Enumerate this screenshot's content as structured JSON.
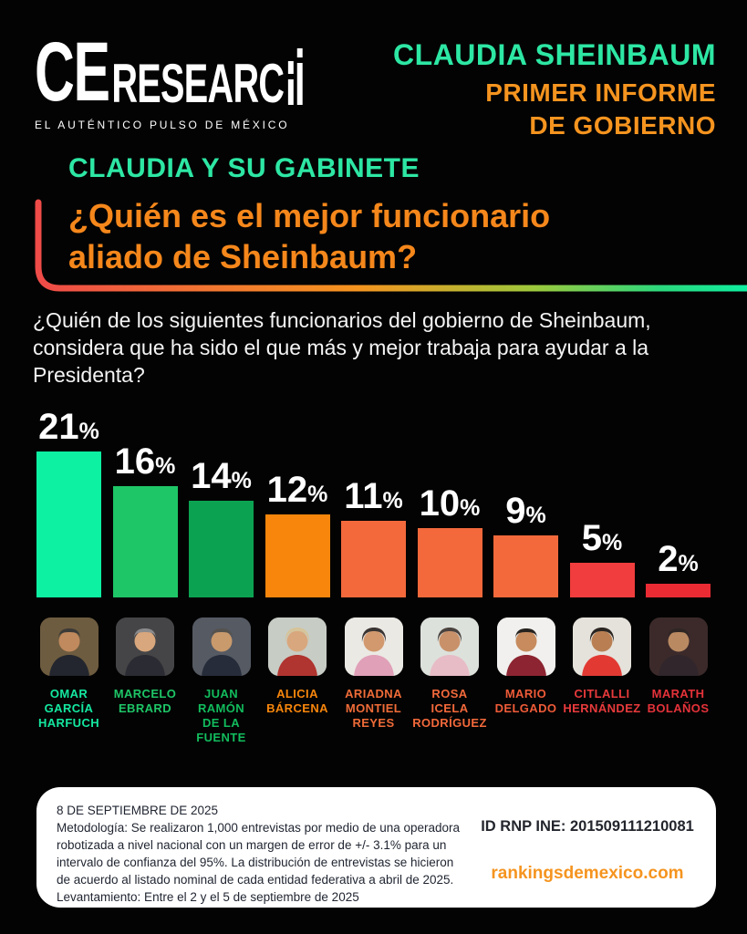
{
  "brand": {
    "logo_primary": "CE",
    "logo_secondary": "RESEARC",
    "tagline": "EL AUTÉNTICO PULSO DE MÉXICO"
  },
  "header": {
    "line1": "CLAUDIA SHEINBAUM",
    "line2": "PRIMER INFORME",
    "line3": "DE GOBIERNO",
    "line1_color": "#2DE7A4",
    "line23_color": "#F5941F"
  },
  "title": {
    "kicker": "CLAUDIA Y SU GABINETE",
    "kicker_color": "#2DE7A4",
    "heading_line1": "¿Quién es el mejor funcionario",
    "heading_line2": "aliado de Sheinbaum?",
    "heading_color": "#F5871B",
    "accent_gradient": [
      "#EF4B48",
      "#F27730",
      "#F5941F",
      "#9DC93C",
      "#2BD97E",
      "#0FEFA0"
    ]
  },
  "question": "¿Quién de los siguientes funcionarios del gobierno de Sheinbaum, considera que ha sido el que más y mejor trabaja para ayudar a la Presidenta?",
  "chart_data": {
    "type": "bar",
    "title": "¿Quién es el mejor funcionario aliado de Sheinbaum?",
    "unit": "%",
    "ylim": [
      0,
      22
    ],
    "grid": false,
    "legend": "none",
    "categories": [
      "Omar García Harfuch",
      "Marcelo Ebrard",
      "Juan Ramón de la Fuente",
      "Alicia Bárcena",
      "Ariadna Montiel Reyes",
      "Rosa Icela Rodríguez",
      "Mario Delgado",
      "Citlalli Hernández",
      "Marath Bolaños"
    ],
    "values": [
      21,
      16,
      14,
      12,
      11,
      10,
      9,
      5,
      2
    ],
    "bar_colors": [
      "#0CF1A2",
      "#1EC667",
      "#0BA351",
      "#F8860C",
      "#F3693B",
      "#F3693B",
      "#F3693B",
      "#F13D3D",
      "#EB2B34"
    ]
  },
  "people": [
    {
      "value": "21",
      "name": "OMAR\nGARCÍA\nHARFUCH",
      "name_color": "#14E8A1",
      "bar_color": "#0CF1A2",
      "photo": {
        "bg": "#6E5C40",
        "skin": "#C08A5E",
        "hair": "#3C3A38",
        "clothes": "#23262E"
      }
    },
    {
      "value": "16",
      "name": "MARCELO\nEBRARD",
      "name_color": "#1EC667",
      "bar_color": "#1EC667",
      "photo": {
        "bg": "#454547",
        "skin": "#D9A77D",
        "hair": "#8A8A8C",
        "clothes": "#2B2B33"
      }
    },
    {
      "value": "14",
      "name": "JUAN\nRAMÓN\nDE LA\nFUENTE",
      "name_color": "#12BC5D",
      "bar_color": "#0BA351",
      "photo": {
        "bg": "#555A63",
        "skin": "#C99A6C",
        "hair": "#55524E",
        "clothes": "#262C3A"
      }
    },
    {
      "value": "12",
      "name": "ALICIA\nBÁRCENA",
      "name_color": "#F8860C",
      "bar_color": "#F8860C",
      "photo": {
        "bg": "#C7CCC5",
        "skin": "#D9A77D",
        "hair": "#D6C49A",
        "clothes": "#B0342F"
      }
    },
    {
      "value": "11",
      "name": "ARIADNA\nMONTIEL\nREYES",
      "name_color": "#F06C38",
      "bar_color": "#F3693B",
      "photo": {
        "bg": "#EBE9E4",
        "skin": "#D2996E",
        "hair": "#3A3432",
        "clothes": "#E0A0B8"
      }
    },
    {
      "value": "10",
      "name": "ROSA\nICELA\nRODRÍGUEZ",
      "name_color": "#F3693B",
      "bar_color": "#F3693B",
      "photo": {
        "bg": "#DDE1DC",
        "skin": "#C9916A",
        "hair": "#4A423E",
        "clothes": "#E7BCC6"
      }
    },
    {
      "value": "9",
      "name": "MARIO\nDELGADO",
      "name_color": "#EF5B38",
      "bar_color": "#F3693B",
      "photo": {
        "bg": "#F1F0EE",
        "skin": "#C78B5E",
        "hair": "#26221F",
        "clothes": "#8D2431"
      }
    },
    {
      "value": "5",
      "name": "CITLALLI\nHERNÁNDEZ",
      "name_color": "#E93A3C",
      "bar_color": "#F13D3D",
      "photo": {
        "bg": "#E5E2DB",
        "skin": "#B97F52",
        "hair": "#2B2522",
        "clothes": "#E23A33"
      }
    },
    {
      "value": "2",
      "name": "MARATH\nBOLAÑOS",
      "name_color": "#E5323A",
      "bar_color": "#EB2B34",
      "photo": {
        "bg": "#3C2A2B",
        "skin": "#B98A62",
        "hair": "#2E2624",
        "clothes": "#30262B"
      }
    }
  ],
  "footer": {
    "date": "8 DE SEPTIEMBRE DE 2025",
    "methodology": "Metodología: Se realizaron 1,000 entrevistas por medio de una operadora robotizada a nivel nacional con un margen de error de +/- 3.1% para un intervalo de confianza del 95%. La distribución de entrevistas se hicieron de acuerdo al listado nominal de cada entidad federativa a abril de 2025.",
    "fieldwork": "Levantamiento: Entre el 2 y el 5 de septiembre de 2025",
    "id_label": "ID RNP INE: 201509111210081",
    "website": "rankingsdemexico.com",
    "website_color": "#F5941F"
  }
}
